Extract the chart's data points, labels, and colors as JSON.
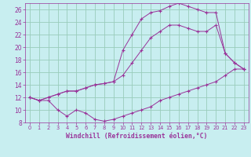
{
  "title": "",
  "xlabel": "Windchill (Refroidissement éolien,°C)",
  "bg_color": "#c8eef0",
  "line_color": "#993399",
  "grid_color": "#99ccbb",
  "xlim": [
    -0.5,
    23.5
  ],
  "ylim": [
    8,
    27
  ],
  "yticks": [
    8,
    10,
    12,
    14,
    16,
    18,
    20,
    22,
    24,
    26
  ],
  "xticks": [
    0,
    1,
    2,
    3,
    4,
    5,
    6,
    7,
    8,
    9,
    10,
    11,
    12,
    13,
    14,
    15,
    16,
    17,
    18,
    19,
    20,
    21,
    22,
    23
  ],
  "series1_x": [
    0,
    1,
    2,
    3,
    4,
    5,
    6,
    7,
    8,
    9,
    10,
    11,
    12,
    13,
    14,
    15,
    16,
    17,
    18,
    19,
    20,
    21,
    22,
    23
  ],
  "series1_y": [
    12,
    11.5,
    11.5,
    10,
    9.0,
    10.0,
    9.5,
    8.5,
    8.2,
    8.5,
    9.0,
    9.5,
    10.0,
    10.5,
    11.5,
    12.0,
    12.5,
    13.0,
    13.5,
    14.0,
    14.5,
    15.5,
    16.5,
    16.5
  ],
  "series2_x": [
    0,
    1,
    2,
    3,
    4,
    5,
    6,
    7,
    8,
    9,
    10,
    11,
    12,
    13,
    14,
    15,
    16,
    17,
    18,
    19,
    20,
    21,
    22,
    23
  ],
  "series2_y": [
    12,
    11.5,
    12,
    12.5,
    13,
    13,
    13.5,
    14,
    14.2,
    14.5,
    15.5,
    17.5,
    19.5,
    21.5,
    22.5,
    23.5,
    23.5,
    23.0,
    22.5,
    22.5,
    23.5,
    19.0,
    17.5,
    16.5
  ],
  "series3_x": [
    0,
    1,
    2,
    3,
    4,
    5,
    6,
    7,
    8,
    9,
    10,
    11,
    12,
    13,
    14,
    15,
    16,
    17,
    18,
    19,
    20,
    21,
    22,
    23
  ],
  "series3_y": [
    12,
    11.5,
    12,
    12.5,
    13,
    13,
    13.5,
    14,
    14.2,
    14.5,
    19.5,
    22.0,
    24.5,
    25.5,
    25.8,
    26.5,
    27.0,
    26.5,
    26.0,
    25.5,
    25.5,
    19.0,
    17.5,
    16.5
  ]
}
